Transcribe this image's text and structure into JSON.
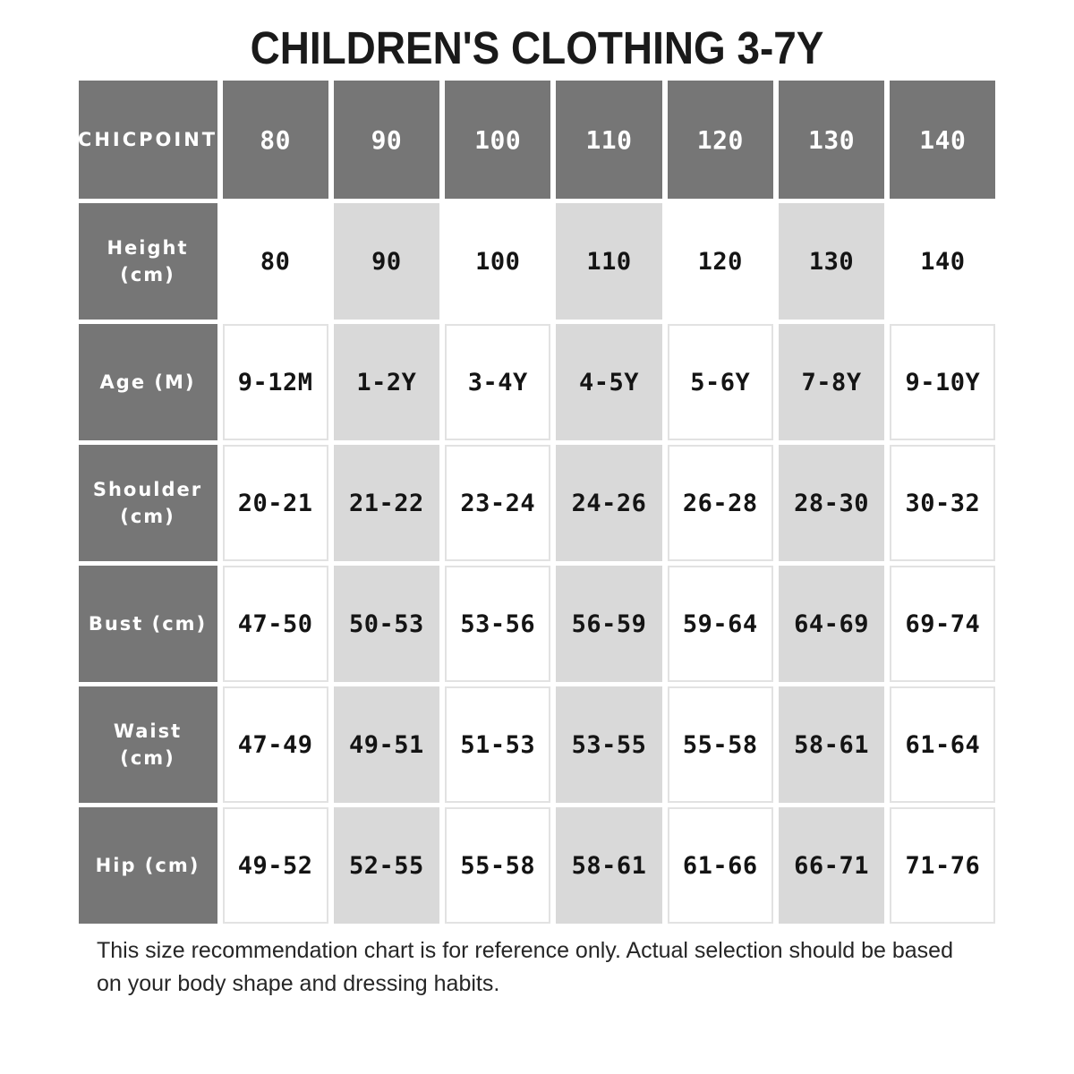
{
  "title": "CHILDREN'S CLOTHING 3-7Y",
  "colors": {
    "header_bg": "#767676",
    "alt_column_bg": "#d9d9d9",
    "cell_border": "#e2e2e2",
    "header_text": "#ffffff",
    "body_text": "#141414"
  },
  "table": {
    "brand": "CHICPOINT",
    "sizes": [
      "80",
      "90",
      "100",
      "110",
      "120",
      "130",
      "140"
    ],
    "rows": [
      {
        "label": "Height\n(cm)",
        "values": [
          "80",
          "90",
          "100",
          "110",
          "120",
          "130",
          "140"
        ]
      },
      {
        "label": "Age (M)",
        "values": [
          "9-12M",
          "1-2Y",
          "3-4Y",
          "4-5Y",
          "5-6Y",
          "7-8Y",
          "9-10Y"
        ]
      },
      {
        "label": "Shoulder\n(cm)",
        "values": [
          "20-21",
          "21-22",
          "23-24",
          "24-26",
          "26-28",
          "28-30",
          "30-32"
        ]
      },
      {
        "label": "Bust (cm)",
        "values": [
          "47-50",
          "50-53",
          "53-56",
          "56-59",
          "59-64",
          "64-69",
          "69-74"
        ]
      },
      {
        "label": "Waist (cm)",
        "values": [
          "47-49",
          "49-51",
          "51-53",
          "53-55",
          "55-58",
          "58-61",
          "61-64"
        ]
      },
      {
        "label": "Hip (cm)",
        "values": [
          "49-52",
          "52-55",
          "55-58",
          "58-61",
          "61-66",
          "66-71",
          "71-76"
        ]
      }
    ]
  },
  "footnote": "This size recommendation chart is for reference only. Actual selection should be based\non your body shape and dressing habits."
}
